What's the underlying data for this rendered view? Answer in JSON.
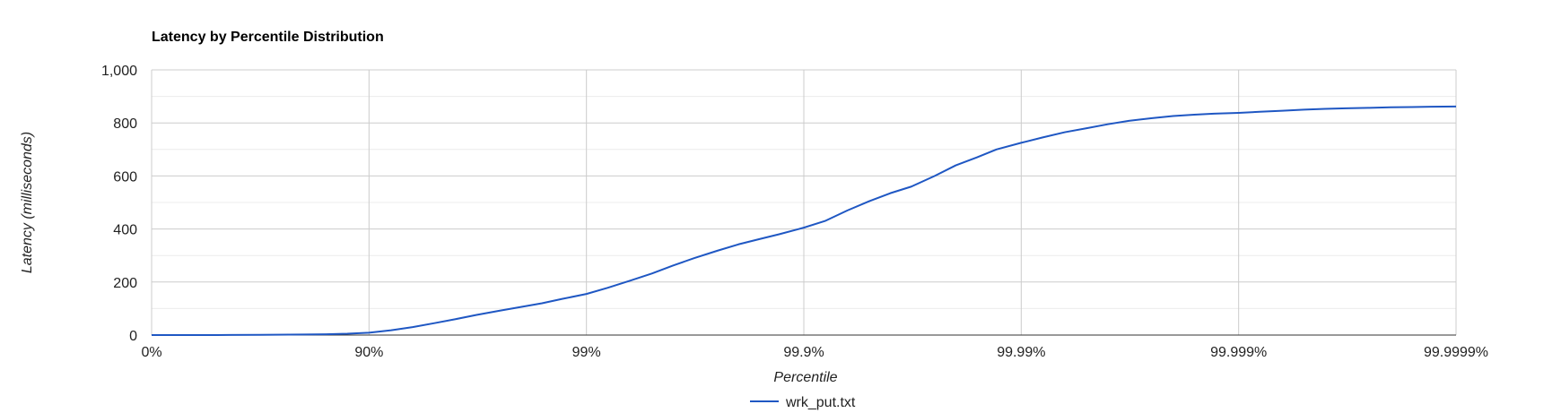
{
  "chart_data": {
    "type": "line",
    "title": "Latency by Percentile Distribution",
    "xlabel": "Percentile",
    "ylabel": "Latency (milliseconds)",
    "x_scale": "inverse-log",
    "x_ticks": [
      {
        "label": "0%",
        "nines": 0
      },
      {
        "label": "90%",
        "nines": 1
      },
      {
        "label": "99%",
        "nines": 2
      },
      {
        "label": "99.9%",
        "nines": 3
      },
      {
        "label": "99.99%",
        "nines": 4
      },
      {
        "label": "99.999%",
        "nines": 5
      },
      {
        "label": "99.9999%",
        "nines": 6
      }
    ],
    "ylim": [
      0,
      1000
    ],
    "y_ticks": [
      0,
      200,
      400,
      600,
      800,
      1000
    ],
    "y_tick_labels": [
      "0",
      "200",
      "400",
      "600",
      "800",
      "1,000"
    ],
    "grid": true,
    "legend_position": "bottom",
    "series": [
      {
        "name": "wrk_put.txt",
        "color": "#1f57c3",
        "x": [
          0,
          20,
          50,
          68.4,
          80,
          84.2,
          87.4,
          90,
          92.1,
          93.7,
          95,
          96,
          96.8,
          97.5,
          98,
          98.4,
          98.7,
          99,
          99.2,
          99.37,
          99.5,
          99.6,
          99.68,
          99.75,
          99.8,
          99.84,
          99.87,
          99.9,
          99.92,
          99.937,
          99.95,
          99.96,
          99.968,
          99.975,
          99.98,
          99.984,
          99.987,
          99.99,
          99.992,
          99.9937,
          99.995,
          99.996,
          99.9968,
          99.9975,
          99.998,
          99.9984,
          99.9987,
          99.999,
          99.9992,
          99.99937,
          99.9995,
          99.9996,
          99.99968,
          99.99975,
          99.9998,
          99.99984,
          99.99987,
          99.9999
        ],
        "y": [
          0,
          0,
          0,
          1,
          2,
          3,
          5,
          9,
          18,
          30,
          45,
          60,
          76,
          92,
          106,
          120,
          136,
          155,
          178,
          205,
          232,
          262,
          290,
          318,
          342,
          362,
          380,
          405,
          430,
          470,
          505,
          535,
          560,
          600,
          640,
          670,
          700,
          725,
          745,
          765,
          780,
          795,
          808,
          818,
          826,
          831,
          835,
          838,
          842,
          846,
          850,
          853,
          855,
          857,
          859,
          860,
          861,
          862
        ]
      }
    ]
  }
}
